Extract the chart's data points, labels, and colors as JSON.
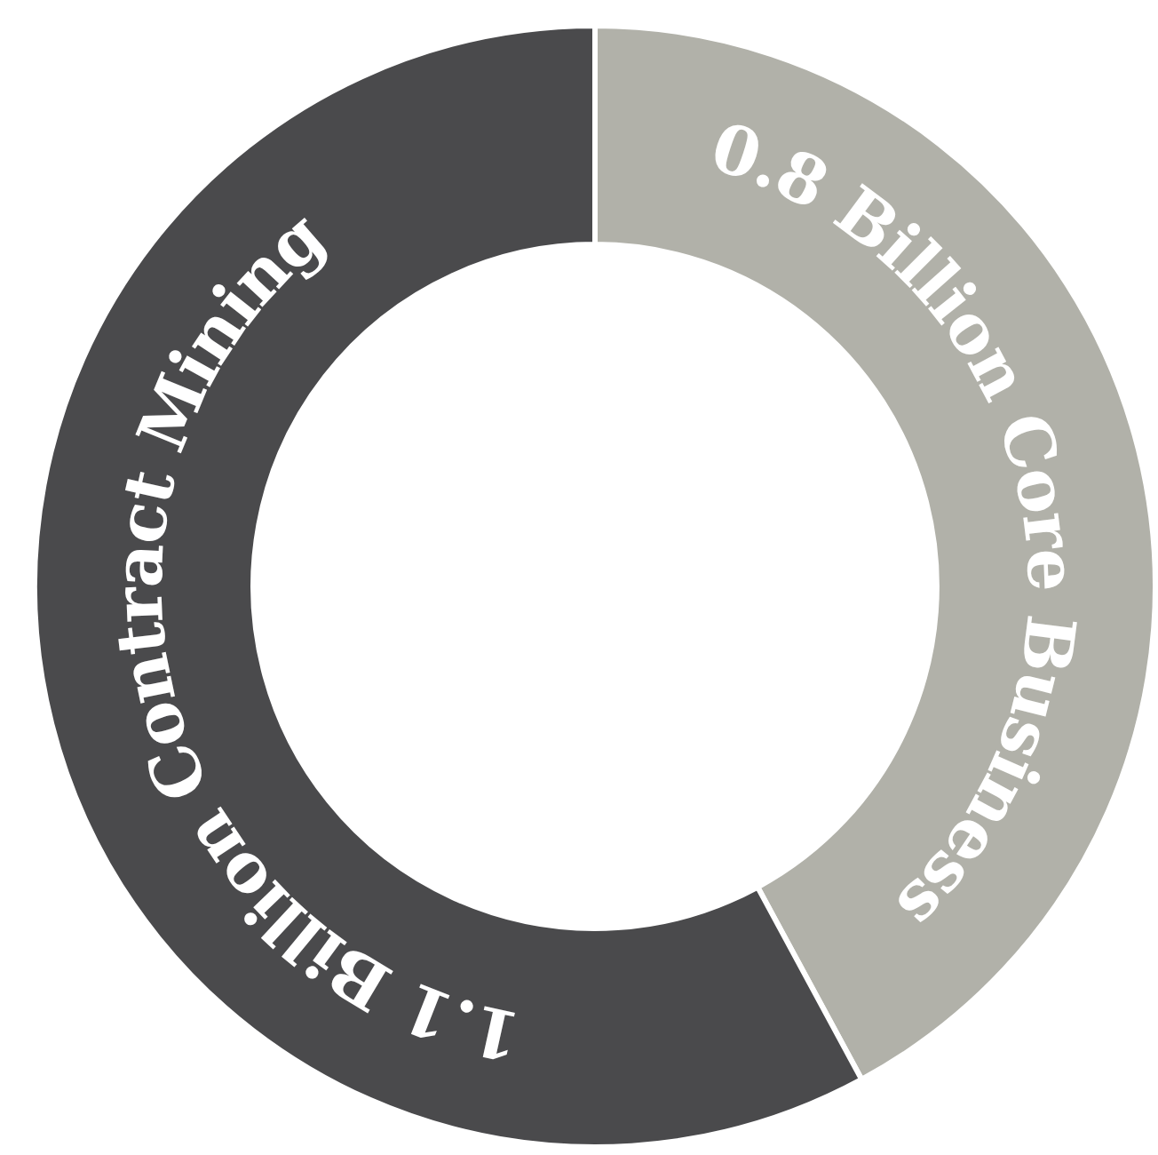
{
  "chart_data": {
    "type": "donut",
    "categories": [
      "0.8 Billion Core Business",
      "1.1 Billion Contract Mining"
    ],
    "values": [
      0.8,
      1.1
    ],
    "colors": [
      "#b1b1a9",
      "#4a4a4c"
    ],
    "legend": false
  }
}
